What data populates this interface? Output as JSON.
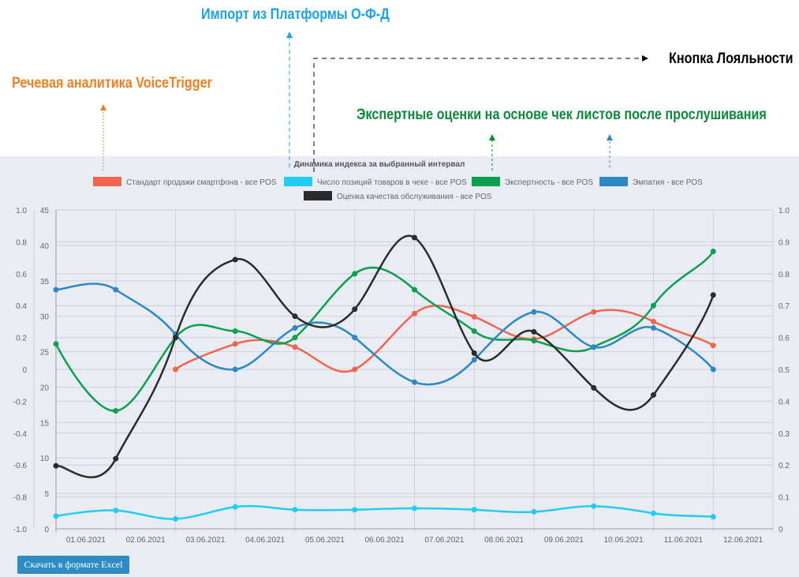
{
  "annotations": {
    "voicetrigger": "Речевая аналитика VoiceTrigger",
    "ofd": "Импорт из Платформы О-Ф-Д",
    "loyalty": "Кнопка Лояльности",
    "expert": "Экспертные оценки на основе чек листов после прослушивания",
    "colors": {
      "voicetrigger": "#f07f1e",
      "ofd": "#1aa3e8",
      "loyalty": "#000000",
      "expert": "#0a8a3a"
    }
  },
  "button": {
    "excel": "Скачать в формате Excel"
  },
  "chart_data": {
    "type": "line",
    "title": "Динамика индекса за выбранный интервал",
    "legend_position": "top",
    "categories": [
      "01.06.2021",
      "02.06.2021",
      "03.06.2021",
      "04.06.2021",
      "05.06.2021",
      "06.06.2021",
      "07.06.2021",
      "08.06.2021",
      "09.06.2021",
      "10.06.2021",
      "11.06.2021",
      "12.06.2021"
    ],
    "axes": {
      "left_outer": {
        "range": [
          -1,
          1
        ],
        "ticks": [
          "1.0",
          "0.8",
          "0.6",
          "0.4",
          "0.2",
          "0",
          "-0.2",
          "-0.4",
          "-0.6",
          "-0.8",
          "-1.0"
        ]
      },
      "left_inner": {
        "range": [
          0,
          45
        ],
        "ticks": [
          "45",
          "40",
          "35",
          "30",
          "25",
          "20",
          "15",
          "10",
          "5",
          "0"
        ]
      },
      "right": {
        "range": [
          0,
          1
        ],
        "ticks": [
          "1.0",
          "0.9",
          "0.8",
          "0.7",
          "0.6",
          "0.5",
          "0.4",
          "0.3",
          "0.2",
          "0.1",
          "0"
        ]
      }
    },
    "grid": true,
    "series": [
      {
        "name": "Стандарт продажи смартфона - все POS",
        "color": "#f26450",
        "axis": "left_outer",
        "values": [
          null,
          null,
          0,
          0.16,
          0.14,
          0,
          0.35,
          0.33,
          0.19,
          0.36,
          0.3,
          0.15
        ]
      },
      {
        "name": "Число позиций товаров в чеке - все POS",
        "color": "#22cdf5",
        "axis": "left_inner",
        "values": [
          1.8,
          2.6,
          1.4,
          3.1,
          2.7,
          2.7,
          2.9,
          2.7,
          2.4,
          3.2,
          2.2,
          1.7
        ]
      },
      {
        "name": "Экспертность - все POS",
        "color": "#0aa04f",
        "axis": "right",
        "values": [
          0.58,
          0.37,
          0.6,
          0.62,
          0.6,
          0.8,
          0.75,
          0.62,
          0.59,
          0.57,
          0.7,
          0.87
        ]
      },
      {
        "name": "Эмпатия - все POS",
        "color": "#2e88c2",
        "axis": "right",
        "values": [
          0.75,
          0.75,
          0.61,
          0.5,
          0.63,
          0.6,
          0.46,
          0.53,
          0.68,
          0.57,
          0.63,
          0.5
        ]
      },
      {
        "name": "Оценка качества обслуживания - все POS",
        "color": "#2b2b2b",
        "axis": "left_inner",
        "values": [
          8.9,
          9.9,
          27.0,
          38.0,
          30.0,
          31.0,
          41.1,
          24.8,
          27.8,
          19.9,
          18.9,
          33.0
        ]
      }
    ]
  }
}
